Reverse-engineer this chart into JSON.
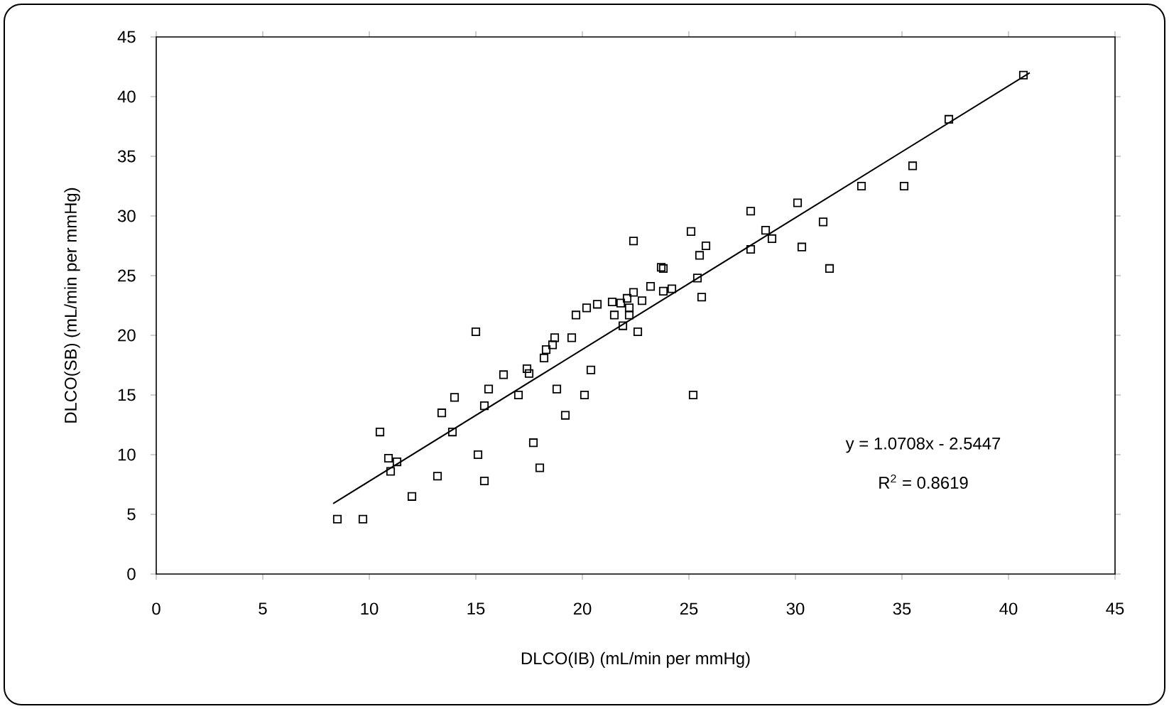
{
  "chart_data": {
    "type": "scatter",
    "xlabel": "DLCO(IB) (mL/min per mmHg)",
    "ylabel": "DLCO(SB) (mL/min per mmHg)",
    "xlim": [
      0,
      45
    ],
    "ylim": [
      0,
      45
    ],
    "xticks": [
      0,
      5,
      10,
      15,
      20,
      25,
      30,
      35,
      40,
      45
    ],
    "yticks": [
      0,
      5,
      10,
      15,
      20,
      25,
      30,
      35,
      40,
      45
    ],
    "marker": "square",
    "annotations": [
      "y = 1.0708x - 2.5447",
      "R$^{2}$ = 0.8619"
    ],
    "series": [
      {
        "color": "#000000",
        "x": [
          8.5,
          9.7,
          10.5,
          10.9,
          11.0,
          11.3,
          12.0,
          13.2,
          13.4,
          13.9,
          14.0,
          15.0,
          15.1,
          15.4,
          15.4,
          15.6,
          16.3,
          17.0,
          17.4,
          17.5,
          17.7,
          18.0,
          18.2,
          18.3,
          18.6,
          18.7,
          18.8,
          19.2,
          19.5,
          19.7,
          20.1,
          20.2,
          20.4,
          20.7,
          21.4,
          21.5,
          21.8,
          21.9,
          22.1,
          22.2,
          22.2,
          22.4,
          22.4,
          22.6,
          22.8,
          23.2,
          23.7,
          23.8,
          23.8,
          24.2,
          25.1,
          25.2,
          25.4,
          25.5,
          25.6,
          25.8,
          27.9,
          27.9,
          28.6,
          28.9,
          30.1,
          30.3,
          31.3,
          31.6,
          33.1,
          35.1,
          35.5,
          37.2,
          40.7
        ],
        "values": [
          4.6,
          4.6,
          11.9,
          9.7,
          8.6,
          9.4,
          6.5,
          8.2,
          13.5,
          11.9,
          14.8,
          20.3,
          10.0,
          14.1,
          7.8,
          15.5,
          16.7,
          15.0,
          17.2,
          16.8,
          11.0,
          8.9,
          18.1,
          18.8,
          19.2,
          19.8,
          15.5,
          13.3,
          19.8,
          21.7,
          15.0,
          22.3,
          17.1,
          22.6,
          22.8,
          21.7,
          22.7,
          20.8,
          23.1,
          22.3,
          21.7,
          27.9,
          23.6,
          20.3,
          22.9,
          24.1,
          25.7,
          25.6,
          23.7,
          23.9,
          28.7,
          15.0,
          24.8,
          26.7,
          23.2,
          27.5,
          30.4,
          27.2,
          28.8,
          28.1,
          31.1,
          27.4,
          29.5,
          25.6,
          32.5,
          32.5,
          34.2,
          38.1,
          41.8
        ]
      },
      {
        "type": "line",
        "color": "#000000",
        "marker": "none",
        "x": [
          8.3,
          41.0
        ],
        "values": [
          5.9,
          42.0
        ]
      }
    ]
  }
}
